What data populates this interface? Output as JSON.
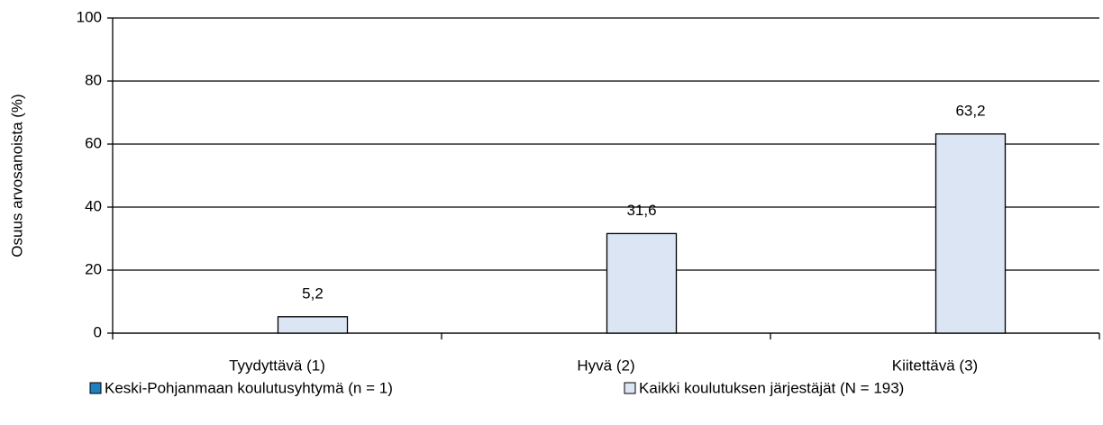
{
  "chart_data": {
    "type": "bar",
    "y_label": "Osuus arvosanoista (%)",
    "categories": [
      "Tyydyttävä (1)",
      "Hyvä (2)",
      "Kiitettävä (3)"
    ],
    "series": [
      {
        "name": "Keski-Pohjanmaan koulutusyhtymä (n = 1)",
        "color": "#1f7fc0",
        "values": [
          null,
          null,
          null
        ]
      },
      {
        "name": "Kaikki koulutuksen järjestäjät (N = 193)",
        "color": "#dbe5f4",
        "values": [
          5.2,
          31.6,
          63.2
        ],
        "value_labels": [
          "5,2",
          "31,6",
          "63,2"
        ]
      }
    ],
    "ylim": [
      0,
      100
    ],
    "yticks": [
      0,
      20,
      40,
      60,
      80,
      100
    ],
    "grid": true
  }
}
